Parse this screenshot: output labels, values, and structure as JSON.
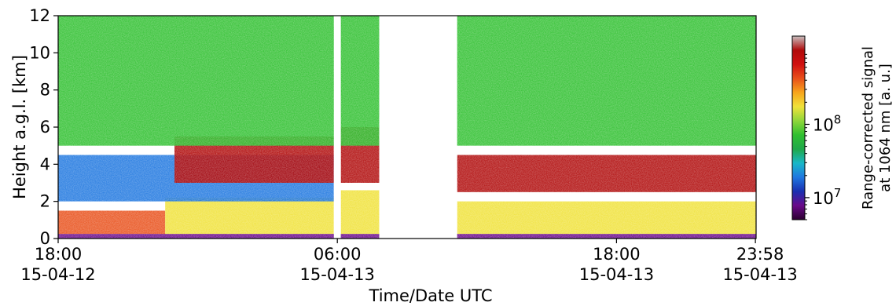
{
  "chart_data": {
    "type": "heatmap",
    "title": "",
    "xlabel": "Time/Date UTC",
    "ylabel": "Height a.g.l. [km]",
    "colorbar_label_line1": "Range-corrected signal",
    "colorbar_label_line2": "at 1064 nm [a. u.]",
    "x_range_hours": [
      0,
      30.0
    ],
    "ylim": [
      0,
      12
    ],
    "y_ticks": [
      "0",
      "2",
      "4",
      "6",
      "8",
      "10",
      "12"
    ],
    "y_tick_values": [
      0,
      2,
      4,
      6,
      8,
      10,
      12
    ],
    "x_ticks": [
      {
        "hours": 0,
        "time": "18:00",
        "date": "15-04-12"
      },
      {
        "hours": 12,
        "time": "06:00",
        "date": "15-04-13"
      },
      {
        "hours": 24,
        "time": "18:00",
        "date": "15-04-13"
      },
      {
        "hours": 29.97,
        "time": "23:58",
        "date": "15-04-13"
      }
    ],
    "colorbar": {
      "scale": "log",
      "range": [
        5000000,
        1600000000
      ],
      "ticks": [
        {
          "value": 10000000,
          "base": "10",
          "exp": "7"
        },
        {
          "value": 100000000,
          "base": "10",
          "exp": "8"
        }
      ],
      "colors": [
        "#2b0030",
        "#6a0a8a",
        "#1a2fb0",
        "#1f77e0",
        "#19b7c8",
        "#1fa84a",
        "#30c030",
        "#8fd63a",
        "#f0e23a",
        "#f7a51c",
        "#e8501b",
        "#d01010",
        "#b00a0a",
        "#c8c0c0"
      ]
    },
    "no_data_periods_hours": [
      [
        11.85,
        12.15
      ],
      [
        13.8,
        17.15
      ]
    ],
    "rows": [
      {
        "y_range": [
          0.0,
          0.25
        ],
        "value": 8000000,
        "note": "near-surface band"
      },
      {
        "segments": [
          {
            "x_range": [
              0,
              4.6
            ],
            "y_range": [
              0.25,
              1.5
            ],
            "value": 400000000
          },
          {
            "x_range": [
              4.6,
              11.85
            ],
            "y_range": [
              0.25,
              2.2
            ],
            "value": 200000000
          },
          {
            "x_range": [
              12.15,
              13.8
            ],
            "y_range": [
              0.25,
              2.6
            ],
            "value": 150000000
          },
          {
            "x_range": [
              17.15,
              30.0
            ],
            "y_range": [
              0.25,
              2.0
            ],
            "value": 200000000
          }
        ]
      },
      {
        "segments": [
          {
            "x_range": [
              0,
              11.85
            ],
            "y_range": [
              2.0,
              4.5
            ],
            "value": 20000000
          },
          {
            "x_range": [
              5.0,
              11.85
            ],
            "y_range": [
              3.0,
              5.5
            ],
            "value": 1000000000
          },
          {
            "x_range": [
              12.15,
              13.8
            ],
            "y_range": [
              3.0,
              6.0
            ],
            "value": 1000000000
          },
          {
            "x_range": [
              17.15,
              30.0
            ],
            "y_range": [
              2.5,
              4.5
            ],
            "value": 1000000000
          },
          {
            "x_range": [
              0,
              30.0
            ],
            "y_range": [
              5.0,
              12.0
            ],
            "value": 60000000
          }
        ]
      }
    ]
  }
}
